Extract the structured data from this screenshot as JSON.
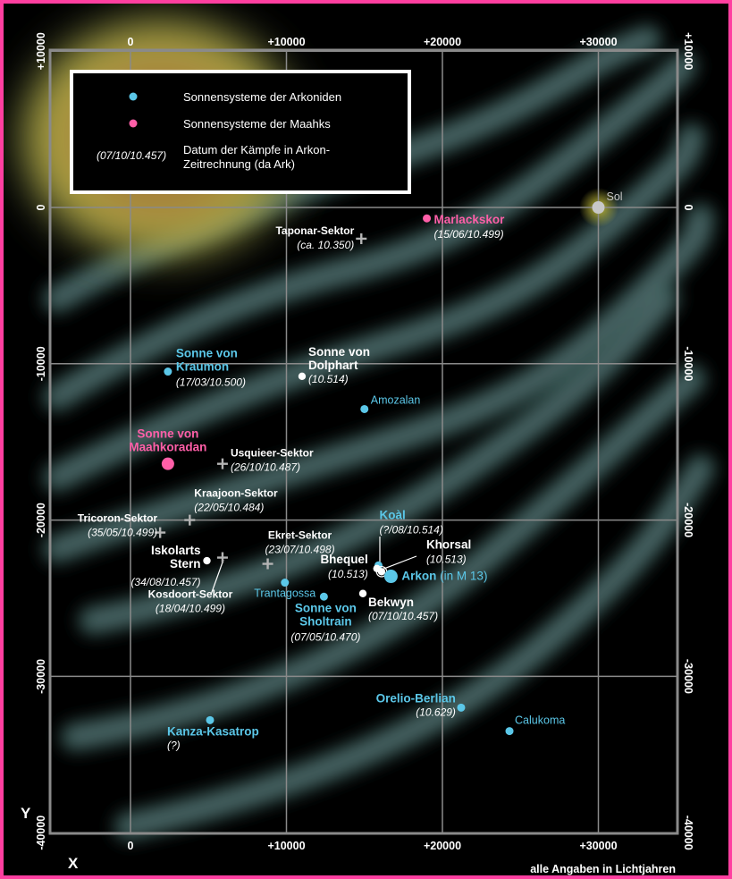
{
  "map": {
    "x_axis_label": "X",
    "y_axis_label": "Y",
    "footnote": "alle Angaben in Lichtjahren",
    "x_ticks": [
      {
        "v": 0,
        "label": "0"
      },
      {
        "v": 10000,
        "label": "+10000"
      },
      {
        "v": 20000,
        "label": "+20000"
      },
      {
        "v": 30000,
        "label": "+30000"
      }
    ],
    "y_ticks": [
      {
        "v": 10000,
        "label": "+10000"
      },
      {
        "v": 0,
        "label": "0"
      },
      {
        "v": -10000,
        "label": "-10000"
      },
      {
        "v": -20000,
        "label": "-20000"
      },
      {
        "v": -30000,
        "label": "-30000"
      },
      {
        "v": -40000,
        "label": "-40000"
      }
    ],
    "colors": {
      "arkonid": "#5bc7e8",
      "maahk": "#ff5fa8",
      "neutral": "#ffffff",
      "sol": "#c8c8c8",
      "sector": "#b4b4b4",
      "grid": "#8a8a8a",
      "border": "#ff3fa0"
    }
  },
  "legend": {
    "arkonid_label": "Sonnensysteme der Arkoniden",
    "maahk_label": "Sonnensysteme der Maahks",
    "date_example": "(07/10/10.457)",
    "date_label_line1": "Datum der Kämpfe in Arkon-",
    "date_label_line2": "Zeitrechnung (da Ark)"
  },
  "places": [
    {
      "id": "sol",
      "kind": "sol",
      "x": 30000,
      "y": 0,
      "name": [
        "Sol"
      ],
      "date": ""
    },
    {
      "id": "marlackskor",
      "kind": "maahk",
      "x": 19000,
      "y": -700,
      "name": [
        "Marlackskor"
      ],
      "date": "(15/06/10.499)"
    },
    {
      "id": "taponar",
      "kind": "sector",
      "x": 14800,
      "y": -2000,
      "name": [
        "Taponar-Sektor"
      ],
      "date": "(ca. 10.350)"
    },
    {
      "id": "kraumon",
      "kind": "arkonid",
      "x": 2400,
      "y": -10500,
      "name": [
        "Sonne von",
        "Kraumon"
      ],
      "date": "(17/03/10.500)"
    },
    {
      "id": "dolphart",
      "kind": "neutral",
      "x": 11000,
      "y": -10800,
      "name": [
        "Sonne von",
        "Dolphart"
      ],
      "date": "(10.514)"
    },
    {
      "id": "amozalan",
      "kind": "arkonid",
      "x": 15000,
      "y": -12900,
      "name": [
        "Amozalan"
      ],
      "date": ""
    },
    {
      "id": "maahkoradan",
      "kind": "maahk",
      "x": 2400,
      "y": -16400,
      "name": [
        "Sonne von",
        "Maahkoradan"
      ],
      "date": ""
    },
    {
      "id": "usquieer",
      "kind": "sector",
      "x": 5900,
      "y": -16400,
      "name": [
        "Usquieer-Sektor"
      ],
      "date": "(26/10/10.487)"
    },
    {
      "id": "kraajoon",
      "kind": "sector",
      "x": 3800,
      "y": -20000,
      "name": [
        "Kraajoon-Sektor"
      ],
      "date": "(22/05/10.484)"
    },
    {
      "id": "tricoron",
      "kind": "sector",
      "x": 1900,
      "y": -20800,
      "name": [
        "Tricoron-Sektor"
      ],
      "date": "(35/05/10.499)"
    },
    {
      "id": "ekret",
      "kind": "sector",
      "x": 8800,
      "y": -22800,
      "name": [
        "Ekret-Sektor"
      ],
      "date": "(23/07/10.498)"
    },
    {
      "id": "koal",
      "kind": "arkonid",
      "x": 15900,
      "y": -22900,
      "name": [
        "Koàl"
      ],
      "date": "(?/08/10.514)"
    },
    {
      "id": "khorsal",
      "kind": "neutral",
      "x": 16100,
      "y": -23300,
      "name": [
        "Khorsal"
      ],
      "date": "(10.513)"
    },
    {
      "id": "bhequel",
      "kind": "neutral",
      "x": 15800,
      "y": -23100,
      "name": [
        "Bhequel"
      ],
      "date": "(10.513)"
    },
    {
      "id": "arkon",
      "kind": "arkonid",
      "x": 16700,
      "y": -23600,
      "name": [
        "Arkon"
      ],
      "suffix": "(in M 13)",
      "date": ""
    },
    {
      "id": "iskolarts",
      "kind": "neutral",
      "x": 4900,
      "y": -22600,
      "name": [
        "Iskolarts",
        "Stern"
      ],
      "date": "(34/08/10.457)"
    },
    {
      "id": "kosdoort",
      "kind": "sector",
      "x": 5900,
      "y": -22400,
      "name": [
        "Kosdoort-Sektor"
      ],
      "date": "(18/04/10.499)"
    },
    {
      "id": "trantagossa",
      "kind": "arkonid",
      "x": 9900,
      "y": -24000,
      "name": [
        "Trantagossa"
      ],
      "date": ""
    },
    {
      "id": "sholtrain",
      "kind": "arkonid",
      "x": 12400,
      "y": -24900,
      "name": [
        "Sonne von",
        "Sholtrain"
      ],
      "date": "(07/05/10.470)"
    },
    {
      "id": "bekwyn",
      "kind": "neutral",
      "x": 14900,
      "y": -24700,
      "name": [
        "Bekwyn"
      ],
      "date": "(07/10/10.457)"
    },
    {
      "id": "orelio",
      "kind": "arkonid",
      "x": 21200,
      "y": -32000,
      "name": [
        "Orelio-Berlian"
      ],
      "date": "(10.629)"
    },
    {
      "id": "calukoma",
      "kind": "arkonid",
      "x": 24300,
      "y": -33500,
      "name": [
        "Calukoma"
      ],
      "date": ""
    },
    {
      "id": "kanza",
      "kind": "arkonid",
      "x": 5100,
      "y": -32800,
      "name": [
        "Kanza-Kasatrop"
      ],
      "date": "(?)"
    }
  ]
}
